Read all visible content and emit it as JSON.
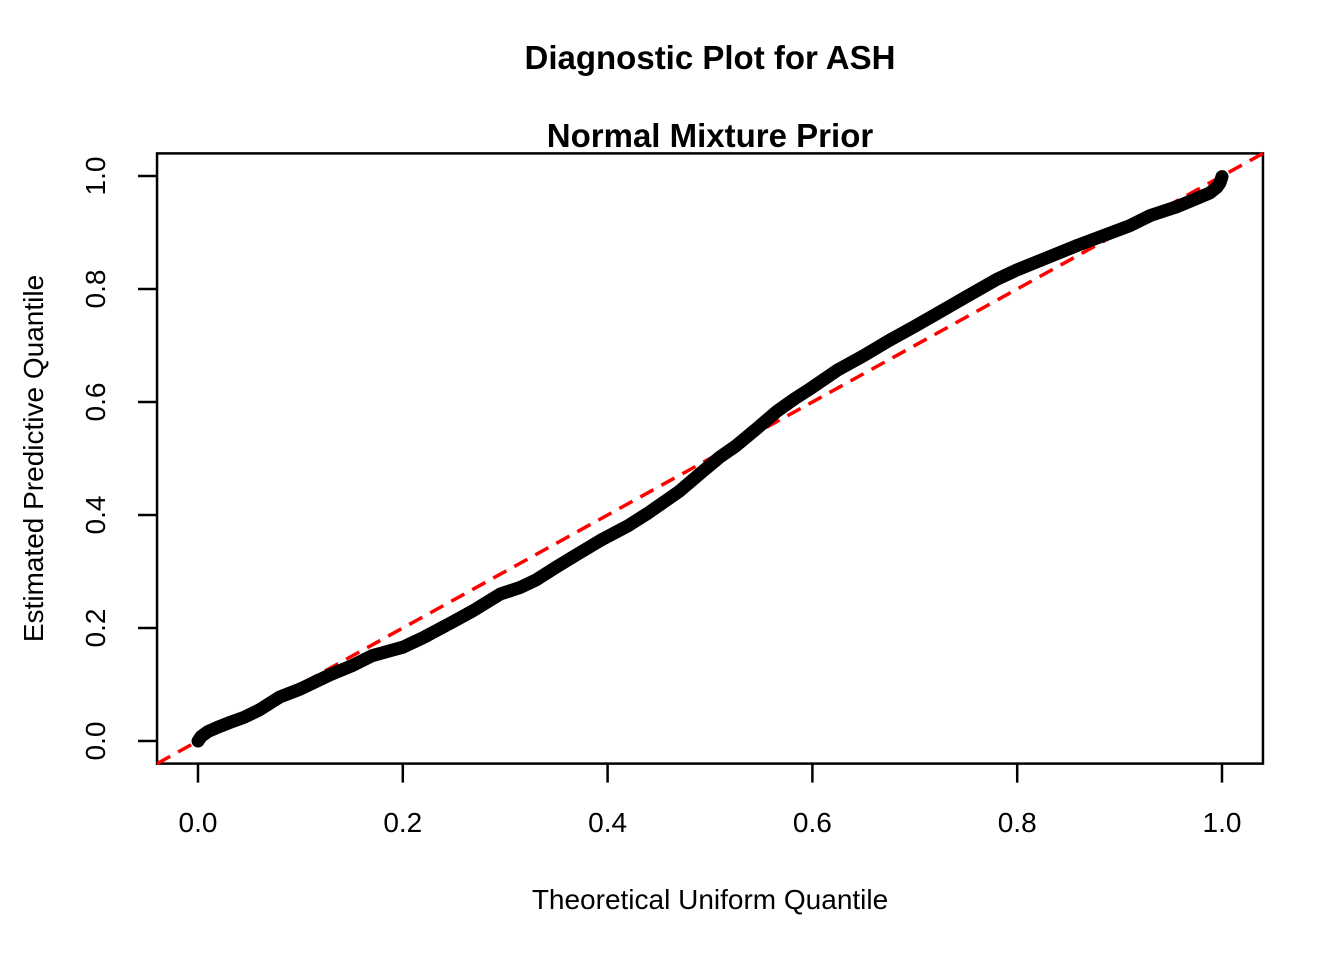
{
  "title": {
    "line1": "Diagnostic Plot for ASH",
    "line2": "Normal Mixture Prior"
  },
  "axes": {
    "x": {
      "label": "Theoretical Uniform Quantile",
      "tick_values": [
        0.0,
        0.2,
        0.4,
        0.6,
        0.8,
        1.0
      ],
      "tick_labels": [
        "0.0",
        "0.2",
        "0.4",
        "0.6",
        "0.8",
        "1.0"
      ]
    },
    "y": {
      "label": "Estimated Predictive Quantile",
      "tick_values": [
        0.0,
        0.2,
        0.4,
        0.6,
        0.8,
        1.0
      ],
      "tick_labels": [
        "0.0",
        "0.2",
        "0.4",
        "0.6",
        "0.8",
        "1.0"
      ]
    }
  },
  "colors": {
    "curve": "#000000",
    "reference_line": "#FF0000",
    "axis": "#000000",
    "background": "#FFFFFF"
  },
  "chart_data": {
    "type": "line",
    "title": "Diagnostic Plot for ASH — Normal Mixture Prior",
    "xlabel": "Theoretical Uniform Quantile",
    "ylabel": "Estimated Predictive Quantile",
    "xlim": [
      0,
      1
    ],
    "ylim": [
      0,
      1
    ],
    "grid": false,
    "legend": "none",
    "axis_expansion": 0.04,
    "series": [
      {
        "name": "estimated-predictive-quantiles",
        "color": "#000000",
        "style": "solid-thick",
        "points": [
          [
            0.0,
            0.0
          ],
          [
            0.003,
            0.008
          ],
          [
            0.01,
            0.017
          ],
          [
            0.02,
            0.025
          ],
          [
            0.03,
            0.032
          ],
          [
            0.045,
            0.042
          ],
          [
            0.06,
            0.055
          ],
          [
            0.08,
            0.078
          ],
          [
            0.1,
            0.092
          ],
          [
            0.13,
            0.118
          ],
          [
            0.15,
            0.133
          ],
          [
            0.17,
            0.151
          ],
          [
            0.2,
            0.166
          ],
          [
            0.22,
            0.183
          ],
          [
            0.25,
            0.212
          ],
          [
            0.27,
            0.232
          ],
          [
            0.295,
            0.26
          ],
          [
            0.315,
            0.272
          ],
          [
            0.33,
            0.285
          ],
          [
            0.35,
            0.308
          ],
          [
            0.37,
            0.33
          ],
          [
            0.393,
            0.355
          ],
          [
            0.42,
            0.381
          ],
          [
            0.44,
            0.404
          ],
          [
            0.47,
            0.442
          ],
          [
            0.49,
            0.473
          ],
          [
            0.51,
            0.503
          ],
          [
            0.525,
            0.522
          ],
          [
            0.545,
            0.552
          ],
          [
            0.565,
            0.583
          ],
          [
            0.582,
            0.605
          ],
          [
            0.6,
            0.626
          ],
          [
            0.625,
            0.657
          ],
          [
            0.65,
            0.682
          ],
          [
            0.675,
            0.709
          ],
          [
            0.7,
            0.734
          ],
          [
            0.725,
            0.76
          ],
          [
            0.75,
            0.786
          ],
          [
            0.78,
            0.817
          ],
          [
            0.8,
            0.834
          ],
          [
            0.83,
            0.856
          ],
          [
            0.86,
            0.878
          ],
          [
            0.885,
            0.895
          ],
          [
            0.91,
            0.912
          ],
          [
            0.93,
            0.93
          ],
          [
            0.955,
            0.945
          ],
          [
            0.975,
            0.96
          ],
          [
            0.988,
            0.97
          ],
          [
            0.995,
            0.98
          ],
          [
            0.998,
            0.988
          ],
          [
            1.0,
            0.999
          ]
        ]
      },
      {
        "name": "reference-line-y-equals-x",
        "color": "#FF0000",
        "style": "dashed",
        "points": [
          [
            0,
            0
          ],
          [
            1,
            1
          ]
        ]
      }
    ]
  }
}
